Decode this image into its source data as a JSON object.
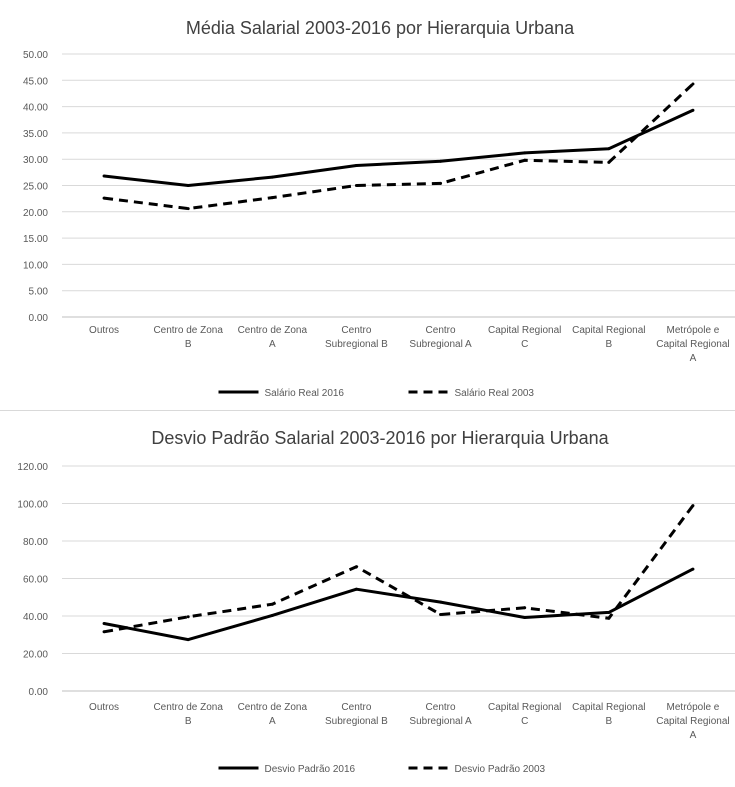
{
  "chart_data": [
    {
      "type": "line",
      "title": "Média Salarial 2003-2016 por Hierarquia Urbana",
      "categories": [
        "Outros",
        "Centro de Zona B",
        "Centro de Zona A",
        "Centro Subregional B",
        "Centro Subregional A",
        "Capital Regional C",
        "Capital Regional B",
        "Metrópole e Capital Regional A"
      ],
      "category_lines": [
        [
          "Outros"
        ],
        [
          "Centro de Zona",
          "B"
        ],
        [
          "Centro de Zona",
          "A"
        ],
        [
          "Centro",
          "Subregional B"
        ],
        [
          "Centro",
          "Subregional A"
        ],
        [
          "Capital Regional",
          "C"
        ],
        [
          "Capital Regional",
          "B"
        ],
        [
          "Metrópole e",
          "Capital Regional",
          "A"
        ]
      ],
      "ylim": [
        0,
        50
      ],
      "yticks": [
        "0.00",
        "5.00",
        "10.00",
        "15.00",
        "20.00",
        "25.00",
        "30.00",
        "35.00",
        "40.00",
        "45.00",
        "50.00"
      ],
      "grid": true,
      "legend_position": "bottom",
      "series": [
        {
          "name": "Salário Real 2016",
          "style": "solid",
          "values": [
            26.8,
            25.0,
            26.6,
            28.8,
            29.6,
            31.2,
            32.0,
            39.3
          ]
        },
        {
          "name": "Salário Real 2003",
          "style": "dashed",
          "values": [
            22.6,
            20.6,
            22.7,
            25.0,
            25.4,
            29.8,
            29.4,
            44.3
          ]
        }
      ]
    },
    {
      "type": "line",
      "title": "Desvio Padrão Salarial 2003-2016 por Hierarquia Urbana",
      "categories": [
        "Outros",
        "Centro de Zona B",
        "Centro de Zona A",
        "Centro Subregional B",
        "Centro Subregional A",
        "Capital Regional C",
        "Capital Regional B",
        "Metrópole e Capital Regional A"
      ],
      "category_lines": [
        [
          "Outros"
        ],
        [
          "Centro de Zona",
          "B"
        ],
        [
          "Centro de Zona",
          "A"
        ],
        [
          "Centro",
          "Subregional B"
        ],
        [
          "Centro",
          "Subregional A"
        ],
        [
          "Capital Regional",
          "C"
        ],
        [
          "Capital Regional",
          "B"
        ],
        [
          "Metrópole e",
          "Capital Regional",
          "A"
        ]
      ],
      "ylim": [
        0,
        120
      ],
      "yticks": [
        "0.00",
        "20.00",
        "40.00",
        "60.00",
        "80.00",
        "100.00",
        "120.00"
      ],
      "grid": true,
      "legend_position": "bottom",
      "series": [
        {
          "name": "Desvio Padrão 2016",
          "style": "solid",
          "values": [
            36.0,
            27.4,
            40.3,
            54.3,
            47.4,
            39.2,
            41.9,
            65.0
          ]
        },
        {
          "name": "Desvio Padrão 2003",
          "style": "dashed",
          "values": [
            31.6,
            39.6,
            46.3,
            66.3,
            40.8,
            44.4,
            38.8,
            98.9
          ]
        }
      ]
    }
  ]
}
